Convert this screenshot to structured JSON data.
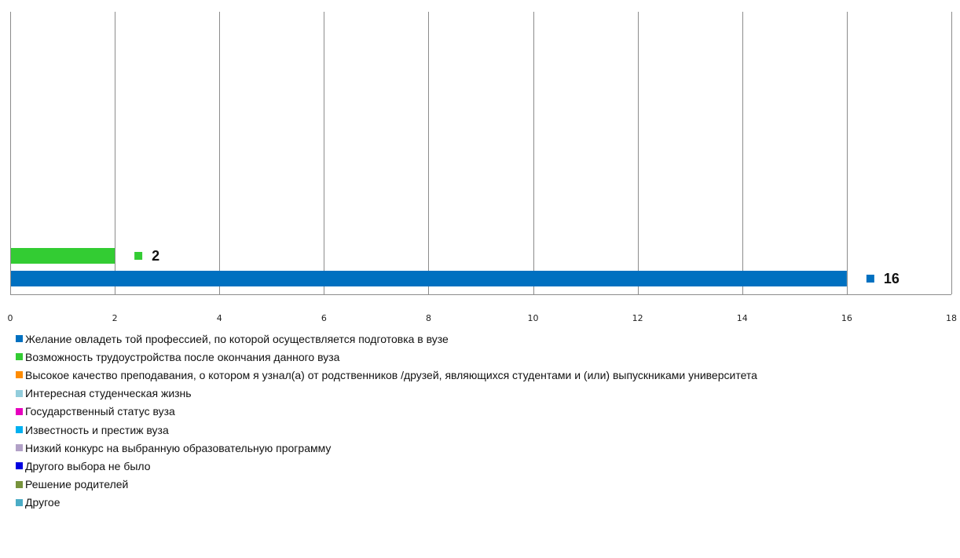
{
  "chart_data": {
    "type": "bar",
    "orientation": "horizontal",
    "xlim": [
      0,
      18
    ],
    "xticks": [
      0,
      2,
      4,
      6,
      8,
      10,
      12,
      14,
      16,
      18
    ],
    "grid": true,
    "legend_position": "bottom",
    "series": [
      {
        "name": "Желание овладеть той профессией, по которой осуществляется подготовка в вузе",
        "value": 16,
        "color": "#0070C0"
      },
      {
        "name": "Возможность трудоустройства после окончания данного вуза",
        "value": 2,
        "color": "#33CC33"
      },
      {
        "name": "Высокое качество преподавания, о котором я узнал(а) от родственников /друзей, являющихся студентами и  (или) выпускниками университета",
        "value": 0,
        "color": "#FF8C00"
      },
      {
        "name": "Интересная студенческая жизнь",
        "value": 0,
        "color": "#92CDDC"
      },
      {
        "name": "Государственный статус вуза",
        "value": 0,
        "color": "#E600BE"
      },
      {
        "name": "Известность и престиж вуза",
        "value": 0,
        "color": "#00B0F0"
      },
      {
        "name": "Низкий конкурс на выбранную образовательную программу",
        "value": 0,
        "color": "#B2A1C7"
      },
      {
        "name": "Другого выбора не было",
        "value": 0,
        "color": "#0000E0"
      },
      {
        "name": "Решение родителей",
        "value": 0,
        "color": "#77933C"
      },
      {
        "name": "Другое",
        "value": 0,
        "color": "#4BACC6"
      }
    ],
    "data_labels": [
      "16",
      "2"
    ]
  }
}
